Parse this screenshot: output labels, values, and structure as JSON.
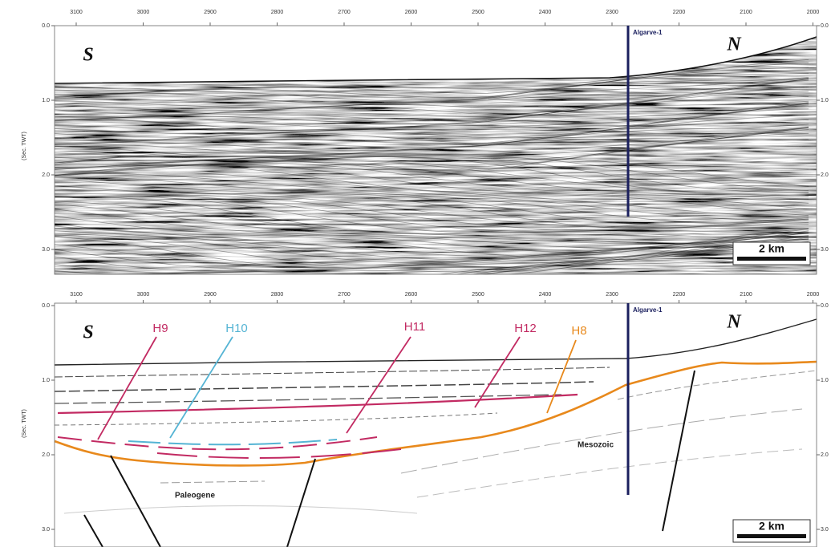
{
  "panels": [
    {
      "x_ticks": [
        "3100",
        "3000",
        "2900",
        "2800",
        "2700",
        "2600",
        "2500",
        "2400",
        "2300",
        "2200",
        "2100",
        "2000"
      ],
      "y_ticks_left": [
        "0.0",
        "1.0",
        "2.0",
        "3.0"
      ],
      "y_ticks_right": [
        "0.0",
        "1.0",
        "2.0",
        "3.0"
      ],
      "y_axis_label": "(Sec. TWT)",
      "well": "Algarve-1",
      "south": "S",
      "north": "N",
      "scale_bar": "2 km"
    },
    {
      "x_ticks": [
        "3100",
        "3000",
        "2900",
        "2800",
        "2700",
        "2600",
        "2500",
        "2400",
        "2300",
        "2200",
        "2100",
        "2000"
      ],
      "y_ticks_left": [
        "0.0",
        "1.0",
        "2.0",
        "3.0"
      ],
      "y_ticks_right": [
        "0.0",
        "1.0",
        "2.0",
        "3.0"
      ],
      "y_axis_label": "(Sec. TWT)",
      "well": "Algarve-1",
      "south": "S",
      "north": "N",
      "scale_bar": "2 km",
      "horizons": [
        {
          "label": "H9",
          "color": "#c22a62"
        },
        {
          "label": "H10",
          "color": "#55b4d4"
        },
        {
          "label": "H11",
          "color": "#c22a62"
        },
        {
          "label": "H12",
          "color": "#c22a62"
        },
        {
          "label": "H8",
          "color": "#e8891c"
        }
      ],
      "units": [
        "Mesozoic",
        "Paleogene"
      ]
    }
  ]
}
